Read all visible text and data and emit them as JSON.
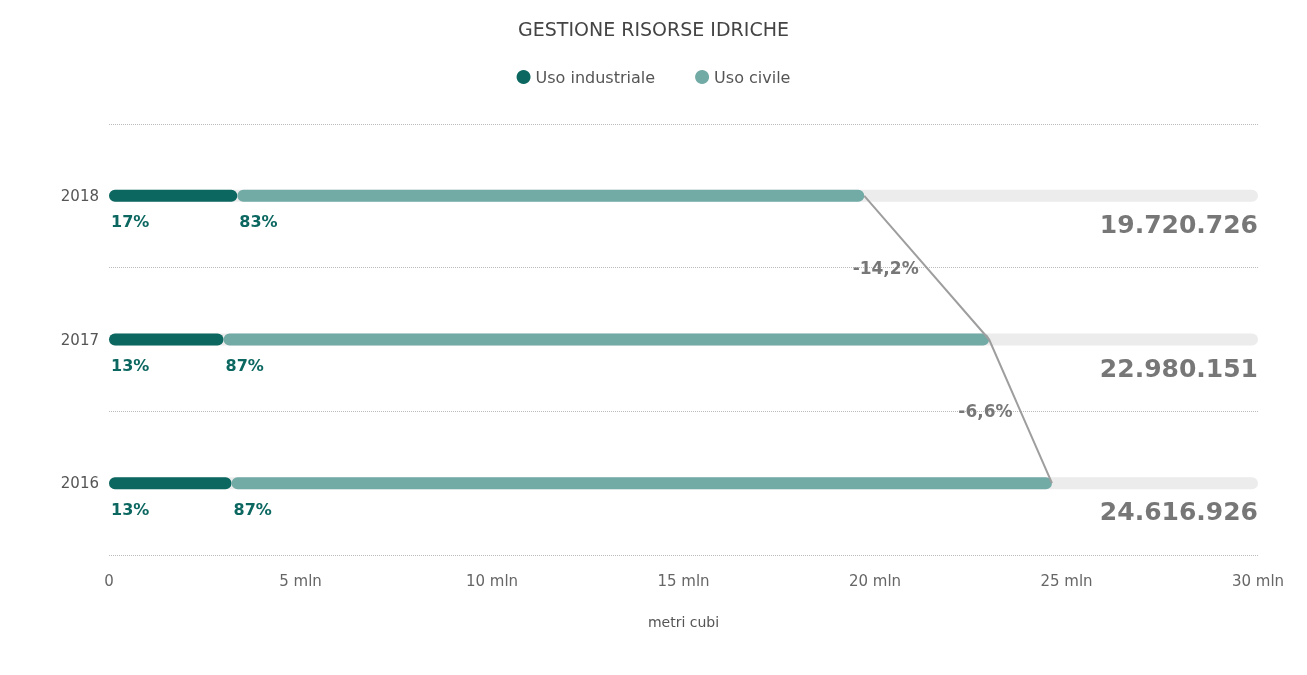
{
  "chart_data": {
    "type": "bar",
    "orientation": "horizontal",
    "stacked": true,
    "title": "GESTIONE RISORSE IDRICHE",
    "xlabel": "metri cubi",
    "categories": [
      "2018",
      "2017",
      "2016"
    ],
    "series": [
      {
        "name": "Uso industriale",
        "color": "#0b6760",
        "values": [
          3.35,
          2.99,
          3.2
        ]
      },
      {
        "name": "Uso civile",
        "color": "#72aaa6",
        "values": [
          16.37,
          19.99,
          21.42
        ]
      },
      {
        "type": "line",
        "color": "#9e9e9e",
        "values": [
          19.72,
          22.98,
          24.62
        ]
      }
    ],
    "annotations": [
      "-14,2%",
      "-6,6%",
      "19.720.726",
      "22.980.151",
      "24.616.926",
      {
        "text": "17%",
        "x": 0,
        "y": "2018"
      },
      {
        "text": "83%",
        "x": 3.35,
        "y": "2018"
      },
      {
        "text": "13%",
        "x": 0,
        "y": "2017"
      },
      {
        "text": "87%",
        "x": 2.99,
        "y": "2017"
      },
      {
        "text": "13%",
        "x": 0,
        "y": "2016"
      },
      {
        "text": "87%",
        "x": 3.2,
        "y": "2016"
      }
    ],
    "xlim": [
      0,
      30
    ],
    "xticks": [
      {
        "value": 0,
        "label": "0"
      },
      {
        "value": 5,
        "label": "5 mln"
      },
      {
        "value": 10,
        "label": "10 mln"
      },
      {
        "value": 15,
        "label": "15 mln"
      },
      {
        "value": 20,
        "label": "20 mln"
      },
      {
        "value": 25,
        "label": "25 mln"
      },
      {
        "value": 30,
        "label": "30 mln"
      }
    ],
    "grid": "y",
    "legend": "top"
  }
}
